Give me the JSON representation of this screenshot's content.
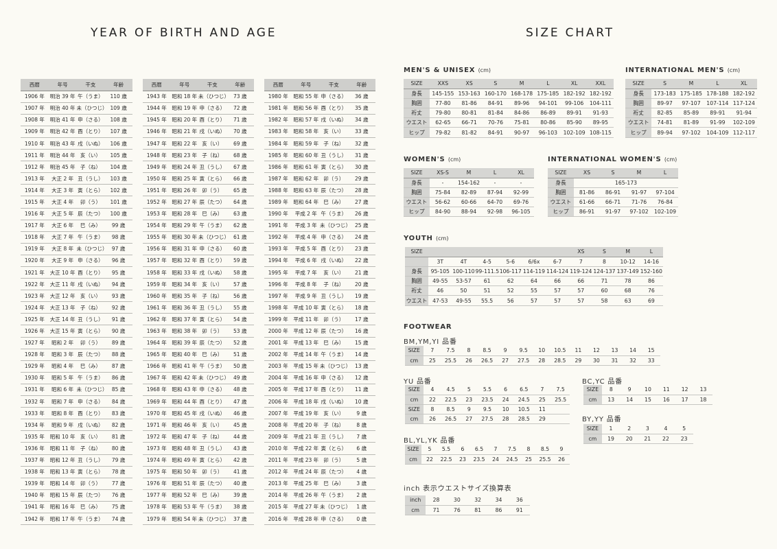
{
  "left_title": "YEAR OF BIRTH AND AGE",
  "right_title": "SIZE CHART",
  "birth_header": [
    "西暦",
    "年号",
    "干支",
    "年齢"
  ],
  "birth_columns": [
    [
      [
        "1906 年",
        "明治 39 年",
        "午（うま）",
        "110 歳"
      ],
      [
        "1907 年",
        "明治 40 年",
        "未（ひつじ）",
        "109 歳"
      ],
      [
        "1908 年",
        "明治 41 年",
        "申（さる）",
        "108 歳"
      ],
      [
        "1909 年",
        "明治 42 年",
        "酉（とり）",
        "107 歳"
      ],
      [
        "1910 年",
        "明治 43 年",
        "戌（いぬ）",
        "106 歳"
      ],
      [
        "1911 年",
        "明治 44 年",
        "亥（い）",
        "105 歳"
      ],
      [
        "1912 年",
        "明治 45 年",
        "子（ね）",
        "104 歳"
      ],
      [
        "1913 年",
        "大正 2 年",
        "丑（うし）",
        "103 歳"
      ],
      [
        "1914 年",
        "大正 3 年",
        "寅（とら）",
        "102 歳"
      ],
      [
        "1915 年",
        "大正 4 年",
        "卯（う）",
        "101 歳"
      ],
      [
        "1916 年",
        "大正 5 年",
        "辰（たつ）",
        "100 歳"
      ],
      [
        "1917 年",
        "大正 6 年",
        "巳（み）",
        "99 歳"
      ],
      [
        "1918 年",
        "大正 7 年",
        "午（うま）",
        "98 歳"
      ],
      [
        "1919 年",
        "大正 8 年",
        "未（ひつじ）",
        "97 歳"
      ],
      [
        "1920 年",
        "大正 9 年",
        "申（さる）",
        "96 歳"
      ],
      [
        "1921 年",
        "大正 10 年",
        "酉（とり）",
        "95 歳"
      ],
      [
        "1922 年",
        "大正 11 年",
        "戌（いぬ）",
        "94 歳"
      ],
      [
        "1923 年",
        "大正 12 年",
        "亥（い）",
        "93 歳"
      ],
      [
        "1924 年",
        "大正 13 年",
        "子（ね）",
        "92 歳"
      ],
      [
        "1925 年",
        "大正 14 年",
        "丑（うし）",
        "91 歳"
      ],
      [
        "1926 年",
        "大正 15 年",
        "寅（とら）",
        "90 歳"
      ],
      [
        "1927 年",
        "昭和 2 年",
        "卯（う）",
        "89 歳"
      ],
      [
        "1928 年",
        "昭和 3 年",
        "辰（たつ）",
        "88 歳"
      ],
      [
        "1929 年",
        "昭和 4 年",
        "巳（み）",
        "87 歳"
      ],
      [
        "1930 年",
        "昭和 5 年",
        "午（うま）",
        "86 歳"
      ],
      [
        "1931 年",
        "昭和 6 年",
        "未（ひつじ）",
        "85 歳"
      ],
      [
        "1932 年",
        "昭和 7 年",
        "申（さる）",
        "84 歳"
      ],
      [
        "1933 年",
        "昭和 8 年",
        "酉（とり）",
        "83 歳"
      ],
      [
        "1934 年",
        "昭和 9 年",
        "戌（いぬ）",
        "82 歳"
      ],
      [
        "1935 年",
        "昭和 10 年",
        "亥（い）",
        "81 歳"
      ],
      [
        "1936 年",
        "昭和 11 年",
        "子（ね）",
        "80 歳"
      ],
      [
        "1937 年",
        "昭和 12 年",
        "丑（うし）",
        "79 歳"
      ],
      [
        "1938 年",
        "昭和 13 年",
        "寅（とら）",
        "78 歳"
      ],
      [
        "1939 年",
        "昭和 14 年",
        "卯（う）",
        "77 歳"
      ],
      [
        "1940 年",
        "昭和 15 年",
        "辰（たつ）",
        "76 歳"
      ],
      [
        "1941 年",
        "昭和 16 年",
        "巳（み）",
        "75 歳"
      ],
      [
        "1942 年",
        "昭和 17 年",
        "午（うま）",
        "74 歳"
      ]
    ],
    [
      [
        "1943 年",
        "昭和 18 年",
        "未（ひつじ）",
        "73 歳"
      ],
      [
        "1944 年",
        "昭和 19 年",
        "申（さる）",
        "72 歳"
      ],
      [
        "1945 年",
        "昭和 20 年",
        "酉（とり）",
        "71 歳"
      ],
      [
        "1946 年",
        "昭和 21 年",
        "戌（いぬ）",
        "70 歳"
      ],
      [
        "1947 年",
        "昭和 22 年",
        "亥（い）",
        "69 歳"
      ],
      [
        "1948 年",
        "昭和 23 年",
        "子（ね）",
        "68 歳"
      ],
      [
        "1949 年",
        "昭和 24 年",
        "丑（うし）",
        "67 歳"
      ],
      [
        "1950 年",
        "昭和 25 年",
        "寅（とら）",
        "66 歳"
      ],
      [
        "1951 年",
        "昭和 26 年",
        "卯（う）",
        "65 歳"
      ],
      [
        "1952 年",
        "昭和 27 年",
        "辰（たつ）",
        "64 歳"
      ],
      [
        "1953 年",
        "昭和 28 年",
        "巳（み）",
        "63 歳"
      ],
      [
        "1954 年",
        "昭和 29 年",
        "午（うま）",
        "62 歳"
      ],
      [
        "1955 年",
        "昭和 30 年",
        "未（ひつじ）",
        "61 歳"
      ],
      [
        "1956 年",
        "昭和 31 年",
        "申（さる）",
        "60 歳"
      ],
      [
        "1957 年",
        "昭和 32 年",
        "酉（とり）",
        "59 歳"
      ],
      [
        "1958 年",
        "昭和 33 年",
        "戌（いぬ）",
        "58 歳"
      ],
      [
        "1959 年",
        "昭和 34 年",
        "亥（い）",
        "57 歳"
      ],
      [
        "1960 年",
        "昭和 35 年",
        "子（ね）",
        "56 歳"
      ],
      [
        "1961 年",
        "昭和 36 年",
        "丑（うし）",
        "55 歳"
      ],
      [
        "1962 年",
        "昭和 37 年",
        "寅（とら）",
        "54 歳"
      ],
      [
        "1963 年",
        "昭和 38 年",
        "卯（う）",
        "53 歳"
      ],
      [
        "1964 年",
        "昭和 39 年",
        "辰（たつ）",
        "52 歳"
      ],
      [
        "1965 年",
        "昭和 40 年",
        "巳（み）",
        "51 歳"
      ],
      [
        "1966 年",
        "昭和 41 年",
        "午（うま）",
        "50 歳"
      ],
      [
        "1967 年",
        "昭和 42 年",
        "未（ひつじ）",
        "49 歳"
      ],
      [
        "1968 年",
        "昭和 43 年",
        "申（さる）",
        "48 歳"
      ],
      [
        "1969 年",
        "昭和 44 年",
        "酉（とり）",
        "47 歳"
      ],
      [
        "1970 年",
        "昭和 45 年",
        "戌（いぬ）",
        "46 歳"
      ],
      [
        "1971 年",
        "昭和 46 年",
        "亥（い）",
        "45 歳"
      ],
      [
        "1972 年",
        "昭和 47 年",
        "子（ね）",
        "44 歳"
      ],
      [
        "1973 年",
        "昭和 48 年",
        "丑（うし）",
        "43 歳"
      ],
      [
        "1974 年",
        "昭和 49 年",
        "寅（とら）",
        "42 歳"
      ],
      [
        "1975 年",
        "昭和 50 年",
        "卯（う）",
        "41 歳"
      ],
      [
        "1976 年",
        "昭和 51 年",
        "辰（たつ）",
        "40 歳"
      ],
      [
        "1977 年",
        "昭和 52 年",
        "巳（み）",
        "39 歳"
      ],
      [
        "1978 年",
        "昭和 53 年",
        "午（うま）",
        "38 歳"
      ],
      [
        "1979 年",
        "昭和 54 年",
        "未（ひつじ）",
        "37 歳"
      ]
    ],
    [
      [
        "1980 年",
        "昭和 55 年",
        "申（さる）",
        "36 歳"
      ],
      [
        "1981 年",
        "昭和 56 年",
        "酉（とり）",
        "35 歳"
      ],
      [
        "1982 年",
        "昭和 57 年",
        "戌（いぬ）",
        "34 歳"
      ],
      [
        "1983 年",
        "昭和 58 年",
        "亥（い）",
        "33 歳"
      ],
      [
        "1984 年",
        "昭和 59 年",
        "子（ね）",
        "32 歳"
      ],
      [
        "1985 年",
        "昭和 60 年",
        "丑（うし）",
        "31 歳"
      ],
      [
        "1986 年",
        "昭和 61 年",
        "寅（とら）",
        "30 歳"
      ],
      [
        "1987 年",
        "昭和 62 年",
        "卯（う）",
        "29 歳"
      ],
      [
        "1988 年",
        "昭和 63 年",
        "辰（たつ）",
        "28 歳"
      ],
      [
        "1989 年",
        "昭和 64 年",
        "巳（み）",
        "27 歳"
      ],
      [
        "1990 年",
        "平成 2 年",
        "午（うま）",
        "26 歳"
      ],
      [
        "1991 年",
        "平成 3 年",
        "未（ひつじ）",
        "25 歳"
      ],
      [
        "1992 年",
        "平成 4 年",
        "申（さる）",
        "24 歳"
      ],
      [
        "1993 年",
        "平成 5 年",
        "酉（とり）",
        "23 歳"
      ],
      [
        "1994 年",
        "平成 6 年",
        "戌（いぬ）",
        "22 歳"
      ],
      [
        "1995 年",
        "平成 7 年",
        "亥（い）",
        "21 歳"
      ],
      [
        "1996 年",
        "平成 8 年",
        "子（ね）",
        "20 歳"
      ],
      [
        "1997 年",
        "平成 9 年",
        "丑（うし）",
        "19 歳"
      ],
      [
        "1998 年",
        "平成 10 年",
        "寅（とら）",
        "18 歳"
      ],
      [
        "1999 年",
        "平成 11 年",
        "卯（う）",
        "17 歳"
      ],
      [
        "2000 年",
        "平成 12 年",
        "辰（たつ）",
        "16 歳"
      ],
      [
        "2001 年",
        "平成 13 年",
        "巳（み）",
        "15 歳"
      ],
      [
        "2002 年",
        "平成 14 年",
        "午（うま）",
        "14 歳"
      ],
      [
        "2003 年",
        "平成 15 年",
        "未（ひつじ）",
        "13 歳"
      ],
      [
        "2004 年",
        "平成 16 年",
        "申（さる）",
        "12 歳"
      ],
      [
        "2005 年",
        "平成 17 年",
        "酉（とり）",
        "11 歳"
      ],
      [
        "2006 年",
        "平成 18 年",
        "戌（いぬ）",
        "10 歳"
      ],
      [
        "2007 年",
        "平成 19 年",
        "亥（い）",
        "9 歳"
      ],
      [
        "2008 年",
        "平成 20 年",
        "子（ね）",
        "8 歳"
      ],
      [
        "2009 年",
        "平成 21 年",
        "丑（うし）",
        "7 歳"
      ],
      [
        "2010 年",
        "平成 22 年",
        "寅（とら）",
        "6 歳"
      ],
      [
        "2011 年",
        "平成 23 年",
        "卯（う）",
        "5 歳"
      ],
      [
        "2012 年",
        "平成 24 年",
        "辰（たつ）",
        "4 歳"
      ],
      [
        "2013 年",
        "平成 25 年",
        "巳（み）",
        "3 歳"
      ],
      [
        "2014 年",
        "平成 26 年",
        "午（うま）",
        "2 歳"
      ],
      [
        "2015 年",
        "平成 27 年",
        "未（ひつじ）",
        "1 歳"
      ],
      [
        "2016 年",
        "平成 28 年",
        "申（さる）",
        "0 歳"
      ]
    ]
  ],
  "sections": {
    "mens_unisex": {
      "title": "MEN'S & UNISEX",
      "unit": "(cm)",
      "header": [
        "SIZE",
        "XXS",
        "XS",
        "S",
        "M",
        "L",
        "XL",
        "XXL"
      ],
      "rows": [
        [
          "身長",
          "145-155",
          "153-163",
          "160-170",
          "168-178",
          "175-185",
          "182-192",
          "182-192"
        ],
        [
          "胸囲",
          "77-80",
          "81-86",
          "84-91",
          "89-96",
          "94-101",
          "99-106",
          "104-111"
        ],
        [
          "裄丈",
          "79-80",
          "80-81",
          "81-84",
          "84-86",
          "86-89",
          "89-91",
          "91-93"
        ],
        [
          "ウエスト",
          "62-65",
          "66-71",
          "70-76",
          "75-81",
          "80-86",
          "85-90",
          "89-95"
        ],
        [
          "ヒップ",
          "79-82",
          "81-82",
          "84-91",
          "90-97",
          "96-103",
          "102-109",
          "108-115"
        ]
      ]
    },
    "intl_mens": {
      "title": "INTERNATIONAL MEN'S",
      "unit": "(cm)",
      "header": [
        "SIZE",
        "S",
        "M",
        "L",
        "XL"
      ],
      "rows": [
        [
          "身長",
          "173-183",
          "175-185",
          "178-188",
          "182-192"
        ],
        [
          "胸囲",
          "89-97",
          "97-107",
          "107-114",
          "117-124"
        ],
        [
          "裄丈",
          "82-85",
          "85-89",
          "89-91",
          "91-94"
        ],
        [
          "ウエスト",
          "74-81",
          "81-89",
          "91-99",
          "102-109"
        ],
        [
          "ヒップ",
          "89-94",
          "97-102",
          "104-109",
          "112-117"
        ]
      ]
    },
    "womens": {
      "title": "WOMEN'S",
      "unit": "(cm)",
      "header": [
        "SIZE",
        "XS-S",
        "M",
        "L",
        "XL"
      ],
      "rows": [
        [
          "身長",
          "-",
          "154-162",
          "-",
          "-"
        ],
        [
          "胸囲",
          "75-84",
          "82-89",
          "87-94",
          "92-99"
        ],
        [
          "ウエスト",
          "56-62",
          "60-66",
          "64-70",
          "69-76"
        ],
        [
          "ヒップ",
          "84-90",
          "88-94",
          "92-98",
          "96-105"
        ]
      ]
    },
    "intl_womens": {
      "title": "INTERNATIONAL WOMEN'S",
      "unit": "(cm)",
      "header": [
        "SIZE",
        "XS",
        "S",
        "M",
        "L"
      ],
      "height_label": "身長",
      "height_value": "165-173",
      "rows": [
        [
          "胸囲",
          "81-86",
          "86-91",
          "91-97",
          "97-104"
        ],
        [
          "ウエスト",
          "61-66",
          "66-71",
          "71-76",
          "76-84"
        ],
        [
          "ヒップ",
          "86-91",
          "91-97",
          "97-102",
          "102-109"
        ]
      ]
    },
    "youth": {
      "title": "YOUTH",
      "unit": "(cm)",
      "header": [
        "SIZE",
        "",
        "",
        "",
        "",
        "",
        "",
        "XS",
        "S",
        "M",
        "L"
      ],
      "sub": [
        "",
        "3T",
        "4T",
        "4-5",
        "5-6",
        "6/6x",
        "6-7",
        "7",
        "8",
        "10-12",
        "14-16"
      ],
      "rows": [
        [
          "身長",
          "95-105",
          "100-110",
          "99-111.5",
          "106-117",
          "114-119",
          "114-124",
          "119-124",
          "124-137",
          "137-149",
          "152-160"
        ],
        [
          "胸囲",
          "49-55",
          "53-57",
          "61",
          "62",
          "64",
          "66",
          "66",
          "71",
          "78",
          "86"
        ],
        [
          "裄丈",
          "46",
          "50",
          "51",
          "52",
          "55",
          "57",
          "57",
          "60",
          "68",
          "76"
        ],
        [
          "ウエスト",
          "47-53",
          "49-55",
          "55.5",
          "56",
          "57",
          "57",
          "57",
          "58",
          "63",
          "69"
        ]
      ]
    },
    "footwear": {
      "title": "FOOTWEAR",
      "bm": {
        "label": "BM,YM,YI 品番",
        "rows": [
          [
            "SIZE",
            "7",
            "7.5",
            "8",
            "8.5",
            "9",
            "9.5",
            "10",
            "10.5",
            "11",
            "12",
            "13",
            "14",
            "15"
          ],
          [
            "cm",
            "25",
            "25.5",
            "26",
            "26.5",
            "27",
            "27.5",
            "28",
            "28.5",
            "29",
            "30",
            "31",
            "32",
            "33"
          ]
        ]
      },
      "yu": {
        "label": "YU 品番",
        "rows": [
          [
            "SIZE",
            "4",
            "4.5",
            "5",
            "5.5",
            "6",
            "6.5",
            "7",
            "7.5"
          ],
          [
            "cm",
            "22",
            "22.5",
            "23",
            "23.5",
            "24",
            "24.5",
            "25",
            "25.5"
          ],
          [
            "SIZE",
            "8",
            "8.5",
            "9",
            "9.5",
            "10",
            "10.5",
            "11",
            ""
          ],
          [
            "cm",
            "26",
            "26.5",
            "27",
            "27.5",
            "28",
            "28.5",
            "29",
            ""
          ]
        ]
      },
      "yc": {
        "label": "BC,YC 品番",
        "rows": [
          [
            "SIZE",
            "8",
            "9",
            "10",
            "11",
            "12",
            "13"
          ],
          [
            "cm",
            "13",
            "14",
            "15",
            "16",
            "17",
            "18"
          ]
        ]
      },
      "yy": {
        "label": "BY,YY 品番",
        "rows": [
          [
            "SIZE",
            "1",
            "2",
            "3",
            "4",
            "5"
          ],
          [
            "cm",
            "19",
            "20",
            "21",
            "22",
            "23"
          ]
        ]
      },
      "bl": {
        "label": "BL,YL,YK 品番",
        "rows": [
          [
            "SIZE",
            "5",
            "5.5",
            "6",
            "6.5",
            "7",
            "7.5",
            "8",
            "8.5",
            "9"
          ],
          [
            "cm",
            "22",
            "22.5",
            "23",
            "23.5",
            "24",
            "24.5",
            "25",
            "25.5",
            "26"
          ]
        ]
      }
    },
    "inch": {
      "title": "inch 表示ウエストサイズ換算表",
      "rows": [
        [
          "inch",
          "28",
          "30",
          "32",
          "34",
          "36"
        ],
        [
          "cm",
          "71",
          "76",
          "81",
          "86",
          "91"
        ]
      ]
    }
  }
}
